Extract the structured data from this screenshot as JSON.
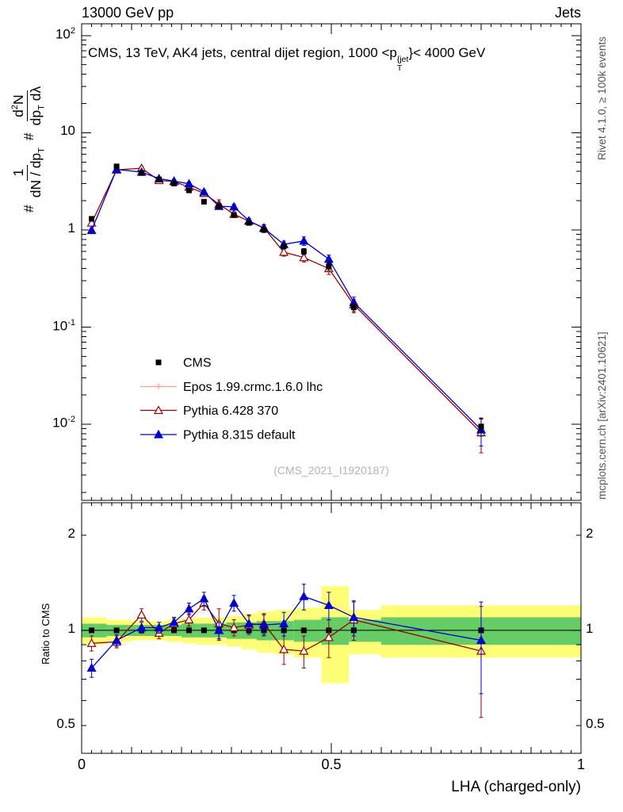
{
  "header": {
    "left": "13000 GeV pp",
    "right": "Jets"
  },
  "title": {
    "pre": "CMS, 13 TeV, AK4 jets, central dijet region, 1000 <p",
    "sup": "{jet",
    "sub": "T",
    "post": "}< 4000 GeV"
  },
  "ylabel": {
    "hash1": "#",
    "num1": "1",
    "den1": "dN / dp",
    "den1_sub": "T",
    "hash2": "#",
    "num2_pre": "d",
    "num2_sup": "2",
    "num2_post": "N",
    "den2_pre": "dp",
    "den2_sub": "T",
    "den2_post": " dλ"
  },
  "right_margin": {
    "top": "Rivet 4.1.0, ≥ 100k events",
    "bottom": "mcplots.cern.ch [arXiv:2401.10621]"
  },
  "watermark": "(CMS_2021_I1920187)",
  "ratio_panel": {
    "ylabel": "Ratio to CMS"
  },
  "axes": {
    "xlabel": "LHA (charged-only)",
    "xticks": [
      {
        "v": 0,
        "label": "0"
      },
      {
        "v": 0.5,
        "label": "0.5"
      },
      {
        "v": 1,
        "label": "1"
      }
    ],
    "yticks_main": [
      {
        "v": 100,
        "base": "10",
        "exp": "2"
      },
      {
        "v": 10,
        "base": "10",
        "exp": ""
      },
      {
        "v": 1,
        "base": "1",
        "exp": ""
      },
      {
        "v": 0.1,
        "base": "10",
        "exp": "-1"
      },
      {
        "v": 0.01,
        "base": "10",
        "exp": "-2"
      }
    ],
    "yticks_ratio": [
      {
        "v": 2,
        "label": "2"
      },
      {
        "v": 1,
        "label": "1"
      },
      {
        "v": 0.5,
        "label": "0.5"
      }
    ]
  },
  "chart_data": {
    "type": "line",
    "title_plain": "CMS, 13 TeV, AK4 jets, central dijet region, 1000 < pT^{jet} < 4000 GeV",
    "xlabel": "LHA (charged-only)",
    "ylabel_plain": "# 1/(dN/dpT) # d²N/(dpT dλ)",
    "ratio_ylabel": "Ratio to CMS",
    "xlim": [
      0,
      1
    ],
    "ylim_main": [
      0.00165,
      132
    ],
    "ylim_ratio": [
      0.408,
      2.535
    ],
    "x": [
      0.02,
      0.07,
      0.12,
      0.155,
      0.185,
      0.215,
      0.245,
      0.275,
      0.305,
      0.335,
      0.365,
      0.405,
      0.445,
      0.495,
      0.545,
      0.8
    ],
    "series": [
      {
        "label": "CMS",
        "color": "#000000",
        "marker": "square",
        "filled": true,
        "line": false,
        "values": [
          1.3,
          4.5,
          3.85,
          3.3,
          3.0,
          2.55,
          1.95,
          1.75,
          1.42,
          1.18,
          1.0,
          0.68,
          0.6,
          0.42,
          0.16,
          0.0095
        ],
        "err_frac": [
          0.05,
          0.04,
          0.04,
          0.04,
          0.04,
          0.04,
          0.05,
          0.05,
          0.05,
          0.05,
          0.06,
          0.06,
          0.07,
          0.09,
          0.12,
          0.2
        ],
        "ratio_const": 1
      },
      {
        "label": "Epos 1.99.crmc.1.6.0 lhc",
        "color": "#ff9999",
        "marker": "cross",
        "filled": false,
        "line": true,
        "values": [],
        "err_frac": []
      },
      {
        "label": "Pythia 6.428 370",
        "color": "#990000",
        "marker": "triangle",
        "filled": false,
        "line": true,
        "values": [
          1.18,
          4.14,
          4.31,
          3.23,
          3.15,
          2.75,
          2.38,
          1.84,
          1.45,
          1.23,
          1.05,
          0.59,
          0.52,
          0.4,
          0.17,
          0.0082
        ],
        "err_frac": [
          0.05,
          0.04,
          0.04,
          0.04,
          0.04,
          0.05,
          0.05,
          0.11,
          0.06,
          0.06,
          0.08,
          0.09,
          0.1,
          0.13,
          0.14,
          0.38
        ],
        "ratio": [
          0.91,
          0.92,
          1.12,
          0.98,
          1.05,
          1.08,
          1.22,
          1.05,
          1.02,
          1.04,
          1.05,
          0.87,
          0.86,
          0.95,
          1.08,
          0.86
        ],
        "ratio_err": [
          0.05,
          0.04,
          0.05,
          0.04,
          0.04,
          0.05,
          0.06,
          0.12,
          0.06,
          0.07,
          0.08,
          0.09,
          0.1,
          0.13,
          0.15,
          0.33
        ]
      },
      {
        "label": "Pythia 8.315 default",
        "color": "#0000cc",
        "marker": "triangle",
        "filled": true,
        "line": true,
        "values": [
          0.99,
          4.19,
          3.93,
          3.37,
          3.18,
          2.98,
          2.46,
          1.75,
          1.73,
          1.24,
          1.04,
          0.71,
          0.77,
          0.5,
          0.18,
          0.0088
        ],
        "err_frac": [
          0.06,
          0.04,
          0.04,
          0.04,
          0.04,
          0.04,
          0.05,
          0.06,
          0.06,
          0.06,
          0.08,
          0.08,
          0.1,
          0.1,
          0.13,
          0.32
        ],
        "ratio": [
          0.76,
          0.93,
          1.02,
          1.02,
          1.06,
          1.17,
          1.26,
          1.0,
          1.22,
          1.05,
          1.04,
          1.05,
          1.28,
          1.2,
          1.1,
          0.93
        ],
        "ratio_err": [
          0.05,
          0.04,
          0.04,
          0.04,
          0.04,
          0.05,
          0.06,
          0.06,
          0.07,
          0.07,
          0.08,
          0.09,
          0.12,
          0.12,
          0.14,
          0.3
        ]
      }
    ],
    "band_colors": {
      "yellow": "#ffff77",
      "green": "#66cc66"
    },
    "bands": [
      {
        "x0": 0.0,
        "x1": 0.05,
        "yellow": [
          0.9,
          1.1
        ],
        "green": [
          0.95,
          1.05
        ]
      },
      {
        "x0": 0.05,
        "x1": 0.1,
        "yellow": [
          0.92,
          1.08
        ],
        "green": [
          0.96,
          1.04
        ]
      },
      {
        "x0": 0.1,
        "x1": 0.14,
        "yellow": [
          0.93,
          1.07
        ],
        "green": [
          0.96,
          1.04
        ]
      },
      {
        "x0": 0.14,
        "x1": 0.17,
        "yellow": [
          0.93,
          1.07
        ],
        "green": [
          0.96,
          1.04
        ]
      },
      {
        "x0": 0.17,
        "x1": 0.2,
        "yellow": [
          0.92,
          1.08
        ],
        "green": [
          0.96,
          1.04
        ]
      },
      {
        "x0": 0.2,
        "x1": 0.23,
        "yellow": [
          0.91,
          1.09
        ],
        "green": [
          0.95,
          1.05
        ]
      },
      {
        "x0": 0.23,
        "x1": 0.26,
        "yellow": [
          0.9,
          1.1
        ],
        "green": [
          0.95,
          1.05
        ]
      },
      {
        "x0": 0.26,
        "x1": 0.29,
        "yellow": [
          0.9,
          1.1
        ],
        "green": [
          0.95,
          1.05
        ]
      },
      {
        "x0": 0.29,
        "x1": 0.32,
        "yellow": [
          0.89,
          1.11
        ],
        "green": [
          0.94,
          1.06
        ]
      },
      {
        "x0": 0.32,
        "x1": 0.35,
        "yellow": [
          0.87,
          1.13
        ],
        "green": [
          0.94,
          1.06
        ]
      },
      {
        "x0": 0.35,
        "x1": 0.385,
        "yellow": [
          0.85,
          1.15
        ],
        "green": [
          0.93,
          1.07
        ]
      },
      {
        "x0": 0.385,
        "x1": 0.425,
        "yellow": [
          0.84,
          1.16
        ],
        "green": [
          0.93,
          1.07
        ]
      },
      {
        "x0": 0.425,
        "x1": 0.48,
        "yellow": [
          0.82,
          1.18
        ],
        "green": [
          0.92,
          1.08
        ]
      },
      {
        "x0": 0.48,
        "x1": 0.535,
        "yellow": [
          0.68,
          1.38
        ],
        "green": [
          0.9,
          1.1
        ]
      },
      {
        "x0": 0.535,
        "x1": 0.6,
        "yellow": [
          0.84,
          1.16
        ],
        "green": [
          0.92,
          1.08
        ]
      },
      {
        "x0": 0.6,
        "x1": 1.0,
        "yellow": [
          0.82,
          1.2
        ],
        "green": [
          0.9,
          1.1
        ]
      }
    ]
  }
}
